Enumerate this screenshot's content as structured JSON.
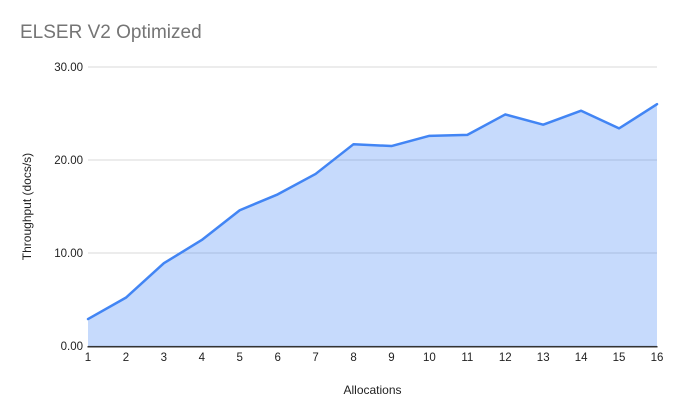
{
  "chart_data": {
    "type": "area",
    "title": "ELSER V2 Optimized",
    "xlabel": "Allocations",
    "ylabel": "Throughput (docs/s)",
    "categories": [
      "1",
      "2",
      "3",
      "4",
      "5",
      "6",
      "7",
      "8",
      "9",
      "10",
      "11",
      "12",
      "13",
      "14",
      "15",
      "16"
    ],
    "series": [
      {
        "name": "Throughput (docs/s)",
        "values": [
          2.9,
          5.2,
          8.9,
          11.4,
          14.6,
          16.3,
          18.5,
          21.7,
          21.5,
          22.6,
          22.7,
          24.9,
          23.8,
          25.3,
          23.4,
          26.0
        ]
      }
    ],
    "ylim": [
      0,
      30
    ],
    "yticks": [
      {
        "value": 0,
        "label": "0.00"
      },
      {
        "value": 10,
        "label": "10.00"
      },
      {
        "value": 20,
        "label": "20.00"
      },
      {
        "value": 30,
        "label": "30.00"
      }
    ],
    "grid": true,
    "legend": "none",
    "colors": {
      "line": "#4285f4",
      "fill": "#4285f4",
      "fill_opacity": 0.3,
      "gridline": "#d9d9d9",
      "axis_line": "#333333",
      "tick_text": "#222222",
      "axis_title_text": "#222222",
      "title_text": "#757575",
      "background": "#ffffff"
    }
  }
}
